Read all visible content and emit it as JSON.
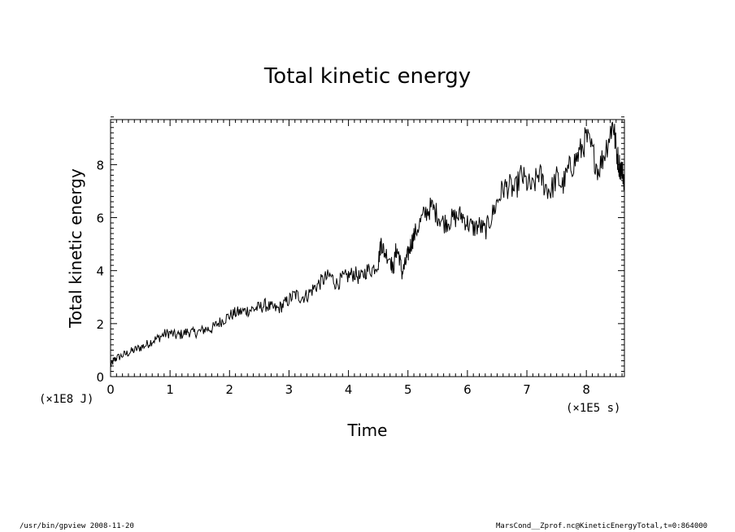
{
  "chart_data": {
    "type": "line",
    "title": "Total kinetic energy",
    "xlabel": "Time",
    "ylabel": "Total kinetic energy",
    "x_unit": "(×1E5 s)",
    "y_unit": "(×1E8 J)",
    "xlim": [
      0,
      8.64
    ],
    "ylim": [
      0,
      9.7
    ],
    "x_ticks": [
      0,
      1,
      2,
      3,
      4,
      5,
      6,
      7,
      8
    ],
    "y_ticks": [
      0,
      2,
      4,
      6,
      8
    ],
    "grid": false,
    "series": [
      {
        "color": "#000000",
        "points": [
          [
            0.0,
            0.4
          ],
          [
            0.05,
            0.6
          ],
          [
            0.1,
            0.7
          ],
          [
            0.2,
            0.8
          ],
          [
            0.3,
            0.9
          ],
          [
            0.4,
            1.0
          ],
          [
            0.5,
            1.1
          ],
          [
            0.6,
            1.2
          ],
          [
            0.7,
            1.35
          ],
          [
            0.8,
            1.45
          ],
          [
            0.9,
            1.6
          ],
          [
            1.0,
            1.65
          ],
          [
            1.1,
            1.55
          ],
          [
            1.2,
            1.6
          ],
          [
            1.3,
            1.7
          ],
          [
            1.4,
            1.65
          ],
          [
            1.5,
            1.7
          ],
          [
            1.6,
            1.8
          ],
          [
            1.7,
            1.8
          ],
          [
            1.8,
            2.0
          ],
          [
            1.9,
            2.15
          ],
          [
            2.0,
            2.3
          ],
          [
            2.1,
            2.4
          ],
          [
            2.2,
            2.45
          ],
          [
            2.3,
            2.5
          ],
          [
            2.4,
            2.55
          ],
          [
            2.5,
            2.6
          ],
          [
            2.6,
            2.7
          ],
          [
            2.7,
            2.6
          ],
          [
            2.8,
            2.55
          ],
          [
            2.9,
            2.7
          ],
          [
            3.0,
            2.9
          ],
          [
            3.1,
            3.1
          ],
          [
            3.2,
            3.0
          ],
          [
            3.3,
            3.05
          ],
          [
            3.4,
            3.3
          ],
          [
            3.5,
            3.5
          ],
          [
            3.6,
            3.7
          ],
          [
            3.7,
            3.8
          ],
          [
            3.8,
            3.5
          ],
          [
            3.9,
            3.7
          ],
          [
            4.0,
            3.8
          ],
          [
            4.1,
            3.9
          ],
          [
            4.2,
            3.7
          ],
          [
            4.3,
            4.0
          ],
          [
            4.4,
            4.05
          ],
          [
            4.5,
            4.3
          ],
          [
            4.55,
            5.1
          ],
          [
            4.6,
            4.7
          ],
          [
            4.7,
            4.5
          ],
          [
            4.75,
            4.0
          ],
          [
            4.8,
            4.8
          ],
          [
            4.85,
            4.6
          ],
          [
            4.9,
            3.9
          ],
          [
            4.95,
            4.2
          ],
          [
            5.0,
            4.6
          ],
          [
            5.05,
            5.0
          ],
          [
            5.1,
            5.3
          ],
          [
            5.2,
            5.8
          ],
          [
            5.3,
            6.2
          ],
          [
            5.4,
            6.4
          ],
          [
            5.5,
            6.1
          ],
          [
            5.6,
            5.8
          ],
          [
            5.7,
            5.9
          ],
          [
            5.8,
            6.0
          ],
          [
            5.9,
            6.1
          ],
          [
            6.0,
            5.8
          ],
          [
            6.1,
            5.6
          ],
          [
            6.2,
            5.7
          ],
          [
            6.3,
            5.5
          ],
          [
            6.4,
            6.0
          ],
          [
            6.5,
            6.6
          ],
          [
            6.6,
            7.1
          ],
          [
            6.7,
            7.2
          ],
          [
            6.8,
            7.0
          ],
          [
            6.9,
            7.6
          ],
          [
            7.0,
            7.3
          ],
          [
            7.1,
            7.1
          ],
          [
            7.2,
            7.7
          ],
          [
            7.3,
            7.2
          ],
          [
            7.4,
            7.0
          ],
          [
            7.5,
            7.5
          ],
          [
            7.6,
            7.2
          ],
          [
            7.7,
            7.8
          ],
          [
            7.8,
            8.1
          ],
          [
            7.9,
            8.5
          ],
          [
            8.0,
            9.0
          ],
          [
            8.1,
            8.5
          ],
          [
            8.2,
            7.8
          ],
          [
            8.3,
            8.4
          ],
          [
            8.4,
            9.2
          ],
          [
            8.45,
            9.6
          ],
          [
            8.5,
            8.6
          ],
          [
            8.55,
            8.0
          ],
          [
            8.6,
            7.8
          ],
          [
            8.64,
            7.4
          ]
        ]
      }
    ]
  },
  "footer": {
    "left": "/usr/bin/gpview  2008-11-20",
    "right": "MarsCond__Zprof.nc@KineticEnergyTotal,t=0:864000"
  }
}
